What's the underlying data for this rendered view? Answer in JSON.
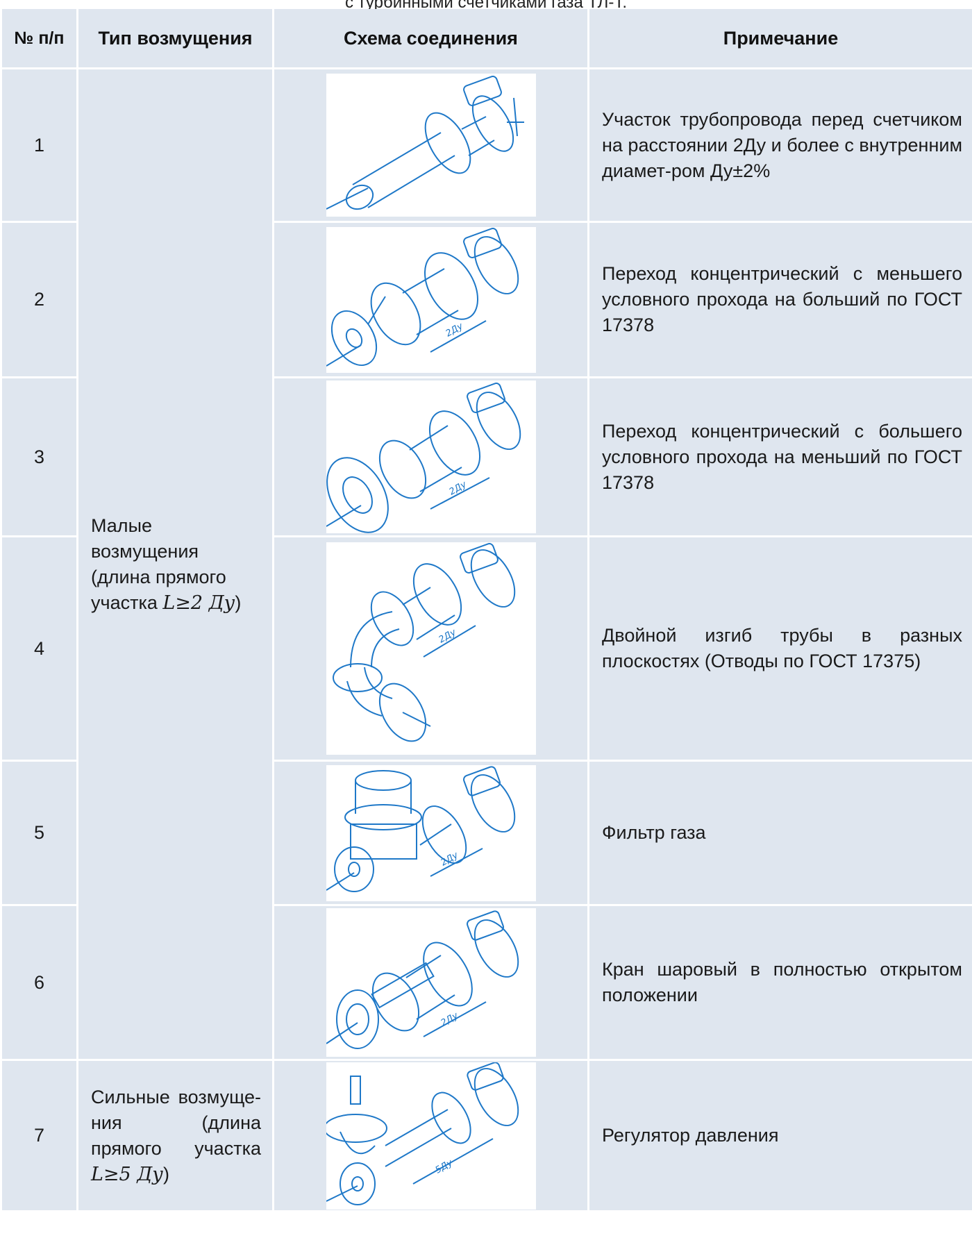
{
  "caption": "с турбинными счетчиками газа ТЛ-Т.",
  "header": {
    "num": "№ п/п",
    "type": "Тип возмущения",
    "scheme": "Схема соединения",
    "note": "Примечание"
  },
  "colors": {
    "cell_bg": "#dfe6ef",
    "line": "#1e78c8",
    "page_bg": "#ffffff"
  },
  "groups": {
    "small_label": "Малые возмущения (длина прямого участка ",
    "small_formula": "L≥2 Ду",
    "small_close": ")",
    "strong_label": "Сильные возмуще-ния (длина прямого участка ",
    "strong_formula": "L≥5 Ду",
    "strong_close": ")"
  },
  "rows": [
    {
      "num": "1",
      "note": "Участок трубопровода перед счетчиком на расстоянии 2Ду и более с внутренним диамет-ром Ду±2%",
      "scheme_icon": "straight-pipe-icon",
      "dim": ""
    },
    {
      "num": "2",
      "note": "Переход концентрический с меньшего условного прохода на больший по ГОСТ 17378",
      "scheme_icon": "reducer-expanding-icon",
      "dim": "2Ду"
    },
    {
      "num": "3",
      "note": "Переход концентрический с большего условного прохода на меньший по ГОСТ 17378",
      "scheme_icon": "reducer-contracting-icon",
      "dim": "2Ду"
    },
    {
      "num": "4",
      "note": "Двойной изгиб трубы в разных плоскостях (Отводы по ГОСТ 17375)",
      "scheme_icon": "double-bend-icon",
      "dim": "2Ду"
    },
    {
      "num": "5",
      "note": "Фильтр газа",
      "scheme_icon": "gas-filter-icon",
      "dim": "2Ду"
    },
    {
      "num": "6",
      "note": "Кран шаровый в полностью открытом положении",
      "scheme_icon": "ball-valve-icon",
      "dim": "2Ду"
    },
    {
      "num": "7",
      "note": "Регулятор давления",
      "scheme_icon": "pressure-regulator-icon",
      "dim": "5Ду"
    }
  ]
}
